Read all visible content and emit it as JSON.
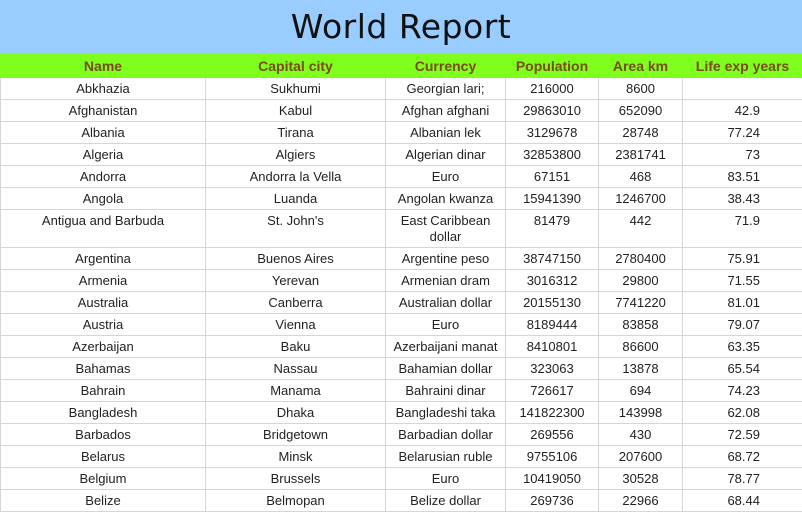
{
  "title": "World Report",
  "columns": [
    "Name",
    "Capital city",
    "Currency",
    "Population",
    "Area km",
    "Life exp years"
  ],
  "rows": [
    [
      "Abkhazia",
      "Sukhumi",
      "Georgian lari;",
      "216000",
      "8600",
      ""
    ],
    [
      "Afghanistan",
      "Kabul",
      "Afghan afghani",
      "29863010",
      "652090",
      "42.9"
    ],
    [
      "Albania",
      "Tirana",
      "Albanian lek",
      "3129678",
      "28748",
      "77.24"
    ],
    [
      "Algeria",
      "Algiers",
      "Algerian dinar",
      "32853800",
      "2381741",
      "73"
    ],
    [
      "Andorra",
      "Andorra la Vella",
      "Euro",
      "67151",
      "468",
      "83.51"
    ],
    [
      "Angola",
      "Luanda",
      "Angolan kwanza",
      "15941390",
      "1246700",
      "38.43"
    ],
    [
      "Antigua and Barbuda",
      "St. John's",
      "East Caribbean dollar",
      "81479",
      "442",
      "71.9"
    ],
    [
      "Argentina",
      "Buenos Aires",
      "Argentine peso",
      "38747150",
      "2780400",
      "75.91"
    ],
    [
      "Armenia",
      "Yerevan",
      "Armenian dram",
      "3016312",
      "29800",
      "71.55"
    ],
    [
      "Australia",
      "Canberra",
      "Australian dollar",
      "20155130",
      "7741220",
      "81.01"
    ],
    [
      "Austria",
      "Vienna",
      "Euro",
      "8189444",
      "83858",
      "79.07"
    ],
    [
      "Azerbaijan",
      "Baku",
      "Azerbaijani manat",
      "8410801",
      "86600",
      "63.35"
    ],
    [
      "Bahamas",
      "Nassau",
      "Bahamian dollar",
      "323063",
      "13878",
      "65.54"
    ],
    [
      "Bahrain",
      "Manama",
      "Bahraini dinar",
      "726617",
      "694",
      "74.23"
    ],
    [
      "Bangladesh",
      "Dhaka",
      "Bangladeshi taka",
      "141822300",
      "143998",
      "62.08"
    ],
    [
      "Barbados",
      "Bridgetown",
      "Barbadian dollar",
      "269556",
      "430",
      "72.59"
    ],
    [
      "Belarus",
      "Minsk",
      "Belarusian ruble",
      "9755106",
      "207600",
      "68.72"
    ],
    [
      "Belgium",
      "Brussels",
      "Euro",
      "10419050",
      "30528",
      "78.77"
    ],
    [
      "Belize",
      "Belmopan",
      "Belize dollar",
      "269736",
      "22966",
      "68.44"
    ]
  ],
  "colors": {
    "title_bg": "#99ccff",
    "header_bg": "#7fff1e",
    "header_text": "#7a4a1a"
  }
}
